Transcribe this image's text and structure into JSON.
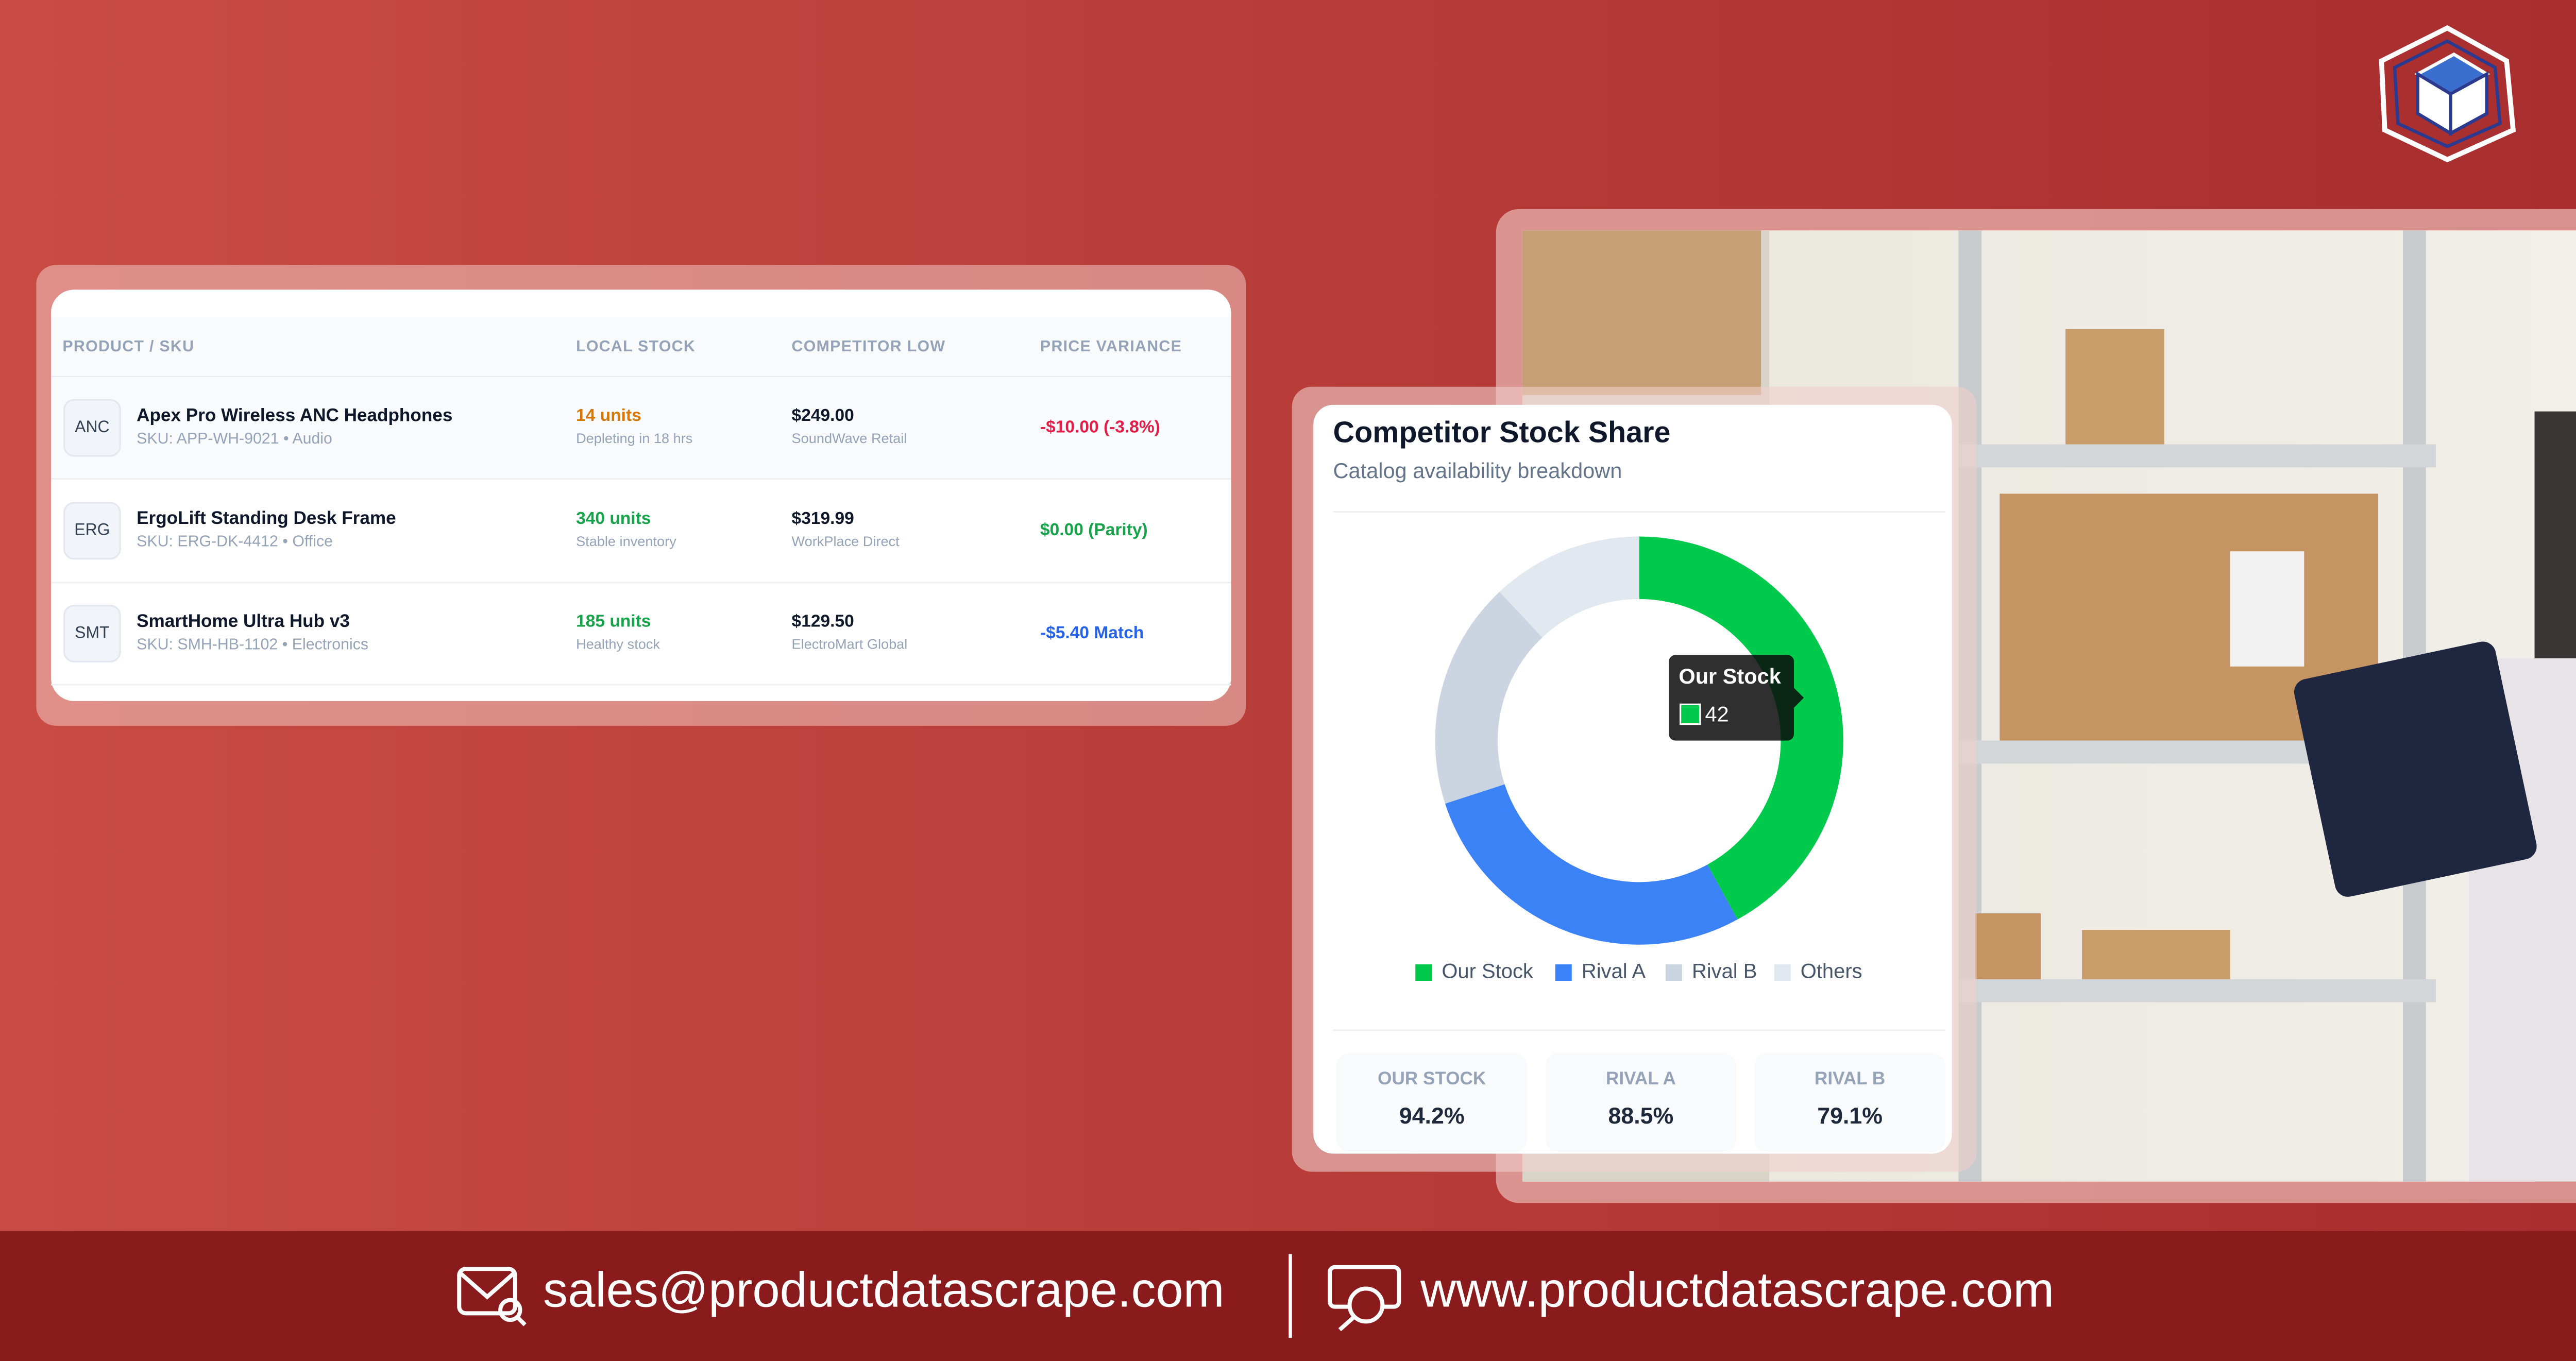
{
  "table": {
    "headers": [
      "PRODUCT / SKU",
      "LOCAL STOCK",
      "COMPETITOR LOW",
      "PRICE VARIANCE"
    ],
    "rows": [
      {
        "badge": "ANC",
        "name": "Apex Pro Wireless ANC Headphones",
        "sku": "SKU: APP-WH-9021 • Audio",
        "stock": "14 units",
        "stock_note": "Depleting in 18 hrs",
        "price": "$249.00",
        "seller": "SoundWave Retail",
        "variance": "-$10.00 (-3.8%)"
      },
      {
        "badge": "ERG",
        "name": "ErgoLift Standing Desk Frame",
        "sku": "SKU: ERG-DK-4412 • Office",
        "stock": "340 units",
        "stock_note": "Stable inventory",
        "price": "$319.99",
        "seller": "WorkPlace Direct",
        "variance": "$0.00 (Parity)"
      },
      {
        "badge": "SMT",
        "name": "SmartHome Ultra Hub v3",
        "sku": "SKU: SMH-HB-1102 • Electronics",
        "stock": "185 units",
        "stock_note": "Healthy stock",
        "price": "$129.50",
        "seller": "ElectroMart Global",
        "variance": "-$5.40 Match"
      }
    ]
  },
  "chart_data": {
    "type": "donut",
    "title": "Competitor Stock Share",
    "subtitle": "Catalog availability breakdown",
    "categories": [
      "Our Stock",
      "Rival A",
      "Rival B",
      "Others"
    ],
    "values": [
      42,
      28,
      18,
      12
    ],
    "colors": [
      "#00c94b",
      "#3b82f6",
      "#cbd5e1",
      "#e2e8f0"
    ]
  },
  "stats": [
    {
      "label": "OUR STOCK",
      "value": "94.2%"
    },
    {
      "label": "RIVAL A",
      "value": "88.5%"
    },
    {
      "label": "RIVAL B",
      "value": "79.1%"
    }
  ],
  "footer": {
    "email": "sales@productdatascrape.com",
    "website": "www.productdatascrape.com"
  }
}
